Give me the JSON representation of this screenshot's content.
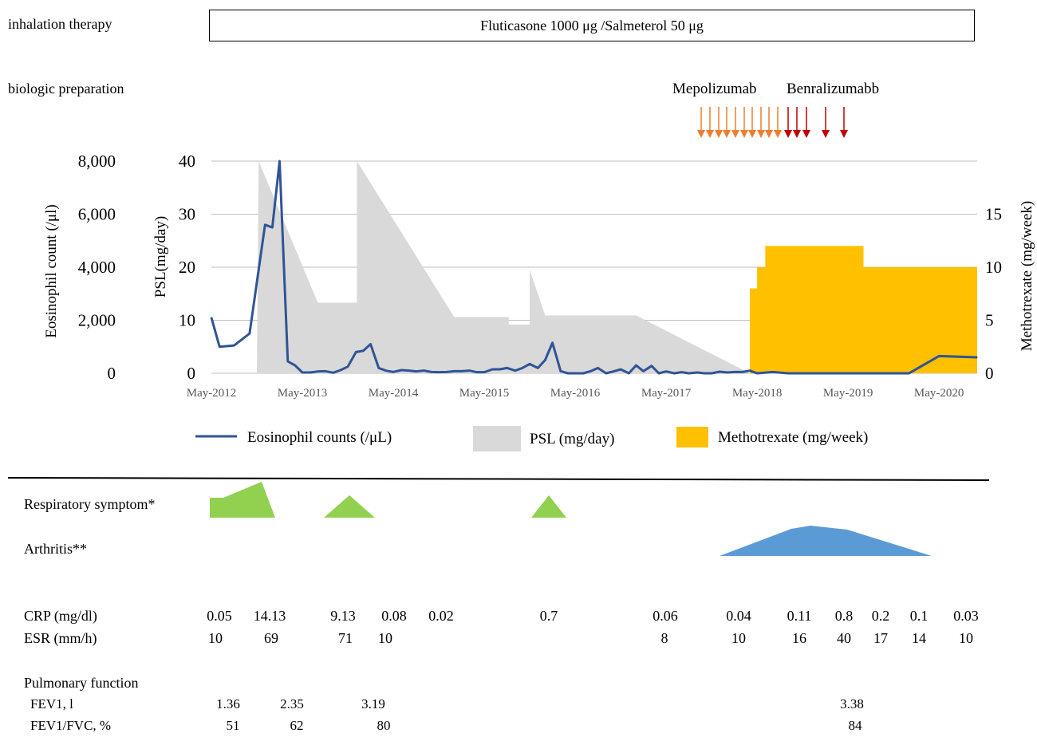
{
  "rows": {
    "inhalation_label": "inhalation therapy",
    "inhalation_drug": "Fluticasone 1000 μg /Salmeterol 50 μg",
    "biologic_label": "biologic preparation",
    "mepolizumab": "Mepolizumab",
    "benralizumab": "Benralizumabb"
  },
  "colors": {
    "eosinophil": "#2f5496",
    "psl": "#d9d9d9",
    "methotrexate": "#ffc000",
    "mepolizumab_arrow": "#ed7d31",
    "benralizumab_arrow": "#c00000",
    "respiratory": "#92d050",
    "arthritis": "#5b9bd5"
  },
  "chart_data": {
    "type": "line",
    "x_ticks": [
      "May-2012",
      "May-2013",
      "May-2014",
      "May-2015",
      "May-2016",
      "May-2017",
      "May-2018",
      "May-2019",
      "May-2020"
    ],
    "axes": {
      "left_outer": {
        "label": "Eosinophil count (/μl)",
        "ticks": [
          "8,000",
          "6,000",
          "4,000",
          "2,000",
          "0"
        ],
        "range": [
          0,
          8000
        ]
      },
      "left_inner": {
        "label": "PSL(mg/day)",
        "ticks": [
          "40",
          "30",
          "20",
          "10",
          "0"
        ],
        "range": [
          0,
          40
        ]
      },
      "right": {
        "label": "Methotrexate (mg/week)",
        "ticks": [
          "15",
          "10",
          "5",
          "0"
        ],
        "range": [
          0,
          20
        ]
      }
    },
    "legend": [
      {
        "key": "eos",
        "label": "Eosinophil counts (/μL)"
      },
      {
        "key": "psl",
        "label": "PSL (mg/day)"
      },
      {
        "key": "mtx",
        "label": "Methotrexate (mg/week)"
      }
    ],
    "series": [
      {
        "name": "Eosinophil counts (/μL)",
        "axis": "left_outer",
        "x": [
          2012.33,
          2012.42,
          2012.58,
          2012.75,
          2012.92,
          2013.0,
          2013.08,
          2013.17,
          2013.25,
          2013.33,
          2013.42,
          2013.5,
          2013.58,
          2013.67,
          2013.75,
          2013.83,
          2013.92,
          2014.0,
          2014.08,
          2014.17,
          2014.25,
          2014.33,
          2014.42,
          2014.5,
          2014.58,
          2014.67,
          2014.75,
          2014.83,
          2014.92,
          2015.0,
          2015.08,
          2015.17,
          2015.25,
          2015.33,
          2015.42,
          2015.5,
          2015.58,
          2015.67,
          2015.75,
          2015.83,
          2015.92,
          2016.0,
          2016.08,
          2016.17,
          2016.25,
          2016.33,
          2016.42,
          2016.5,
          2016.58,
          2016.67,
          2016.75,
          2016.83,
          2016.92,
          2017.0,
          2017.08,
          2017.17,
          2017.25,
          2017.33,
          2017.42,
          2017.5,
          2017.58,
          2017.67,
          2017.75,
          2017.83,
          2017.92,
          2018.0,
          2018.08,
          2018.17,
          2018.25,
          2018.33,
          2018.5,
          2018.67,
          2018.83,
          2019.0,
          2019.17,
          2019.33,
          2019.5,
          2019.67,
          2019.83,
          2020.0,
          2020.33,
          2020.75
        ],
        "y": [
          2100,
          1000,
          1050,
          1500,
          5600,
          5500,
          8000,
          450,
          300,
          30,
          30,
          70,
          80,
          20,
          120,
          250,
          800,
          850,
          1100,
          200,
          100,
          50,
          120,
          100,
          70,
          100,
          50,
          40,
          50,
          80,
          80,
          100,
          40,
          40,
          150,
          150,
          200,
          100,
          200,
          350,
          200,
          500,
          1150,
          80,
          0,
          0,
          0,
          80,
          200,
          0,
          70,
          150,
          0,
          300,
          80,
          280,
          0,
          70,
          0,
          40,
          0,
          30,
          0,
          0,
          60,
          30,
          50,
          50,
          100,
          0,
          50,
          0,
          0,
          0,
          0,
          0,
          0,
          0,
          0,
          0,
          650,
          600
        ],
        "note_x_units": "years"
      },
      {
        "name": "PSL (mg/day)",
        "axis": "left_inner",
        "type": "area",
        "x": [
          2012.83,
          2012.85,
          2013.5,
          2013.5,
          2013.93,
          2013.93,
          2015.0,
          2015.6,
          2015.6,
          2015.83,
          2015.83,
          2016.0,
          2016.0,
          2016.25,
          2016.25,
          2017.0,
          2017.0,
          2018.25
        ],
        "y": [
          0,
          40,
          13.3,
          13.3,
          13.3,
          40,
          10.6,
          10.6,
          9.2,
          9.2,
          19.5,
          10.9,
          10.9,
          10.9,
          10.9,
          10.9,
          10.9,
          0
        ]
      },
      {
        "name": "Methotrexate (mg/week)",
        "axis": "right",
        "type": "step-area",
        "x": [
          2018.25,
          2018.33,
          2018.42,
          2019.5,
          2020.0,
          2020.75
        ],
        "y": [
          8,
          10,
          12,
          10,
          10,
          8
        ]
      }
    ]
  },
  "symptoms": {
    "respiratory_label": "Respiratory symptom*",
    "arthritis_label": "Arthritis**"
  },
  "labs": {
    "crp_label": "CRP (mg/dl)",
    "crp_values": [
      "0.05",
      "14.13",
      "9.13",
      "0.08",
      "0.02",
      "0.7",
      "0.06",
      "0.04",
      "0.11",
      "0.8",
      "0.2",
      "0.1",
      "0.03"
    ],
    "esr_label": "ESR (mm/h)",
    "esr_values": [
      "10",
      "69",
      "71",
      "10",
      "8",
      "10",
      "16",
      "40",
      "17",
      "14",
      "10"
    ]
  },
  "pulmonary": {
    "title": "Pulmonary function",
    "fev1_label": "FEV1, l",
    "fev1_values": [
      "1.36",
      "2.35",
      "3.19",
      "3.38"
    ],
    "ratio_label": "FEV1/FVC, %",
    "ratio_values": [
      "51",
      "62",
      "80",
      "84"
    ]
  }
}
